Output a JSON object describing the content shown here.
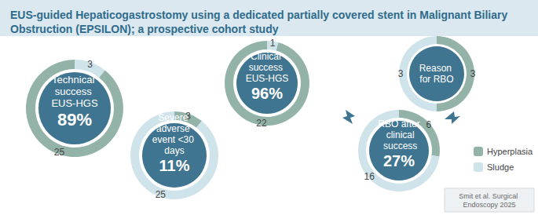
{
  "title": "EUS-guided Hepaticogastrostomy using a dedicated partially covered stent in Malignant Biliary Obstruction (EPSILON); a prospective cohort study",
  "source": "Smit et al. Surgical Endoscopy 2025",
  "chart_data": [
    {
      "type": "pie",
      "title": "Technical success EUS-HGS",
      "annotation": "89%",
      "values": [
        3,
        25
      ],
      "colors": [
        "#cfe3eb",
        "#93b3a9"
      ],
      "data_labels": true
    },
    {
      "type": "pie",
      "title": "Severe adverse event <30 days",
      "annotation": "11%",
      "values": [
        3,
        25
      ],
      "colors": [
        "#93b3a9",
        "#cfe3eb"
      ],
      "data_labels": true
    },
    {
      "type": "pie",
      "title": "Clinical success EUS-HGS",
      "annotation": "96%",
      "values": [
        1,
        22
      ],
      "colors": [
        "#cfe3eb",
        "#93b3a9"
      ],
      "data_labels": true
    },
    {
      "type": "pie",
      "title": "RBO after clinical success",
      "annotation": "27%",
      "values": [
        6,
        16
      ],
      "colors": [
        "#93b3a9",
        "#cfe3eb"
      ],
      "data_labels": true
    },
    {
      "type": "pie",
      "title": "Reason for RBO",
      "categories": [
        "Hyperplasia",
        "Sludge"
      ],
      "values": [
        3,
        3
      ],
      "colors": [
        "#93b3a9",
        "#cfe3eb"
      ],
      "data_labels": true,
      "legend": "right"
    }
  ]
}
